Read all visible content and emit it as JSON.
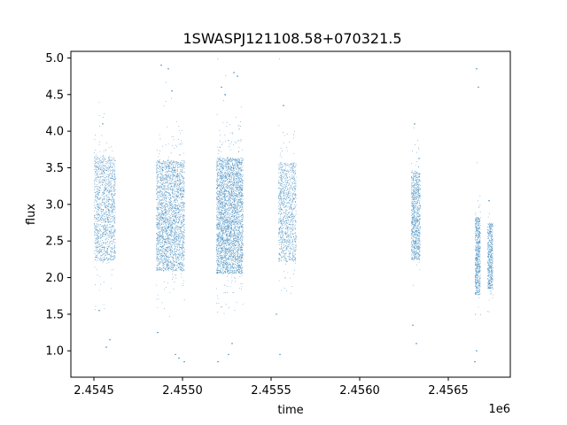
{
  "chart_data": {
    "type": "scatter",
    "title": "1SWASPJ121108.58+070321.5",
    "xlabel": "time",
    "ylabel": "flux",
    "x_offset_label": "1e6",
    "xlim": [
      2.45437,
      2.45685
    ],
    "ylim": [
      0.64,
      5.09
    ],
    "x_ticks": [
      2.4545,
      2.455,
      2.4555,
      2.456,
      2.4565
    ],
    "x_tick_labels": [
      "2.4545",
      "2.4550",
      "2.4555",
      "2.4560",
      "2.4565"
    ],
    "y_ticks": [
      1.0,
      1.5,
      2.0,
      2.5,
      3.0,
      3.5,
      4.0,
      4.5,
      5.0
    ],
    "y_tick_labels": [
      "1.0",
      "1.5",
      "2.0",
      "2.5",
      "3.0",
      "3.5",
      "4.0",
      "4.5",
      "5.0"
    ],
    "grid": false,
    "point_color": "#1f77b4",
    "clusters": [
      {
        "x_start": 2.4545,
        "x_end": 2.45462,
        "y_center": 2.95,
        "y_spread": 0.95,
        "density": 1400
      },
      {
        "x_start": 2.45485,
        "x_end": 2.45501,
        "y_center": 2.85,
        "y_spread": 1.0,
        "density": 2600
      },
      {
        "x_start": 2.45519,
        "x_end": 2.45534,
        "y_center": 2.85,
        "y_spread": 1.05,
        "density": 3400
      },
      {
        "x_start": 2.45554,
        "x_end": 2.45564,
        "y_center": 2.9,
        "y_spread": 0.9,
        "density": 1100
      },
      {
        "x_start": 2.45629,
        "x_end": 2.45634,
        "y_center": 2.85,
        "y_spread": 0.8,
        "density": 900
      },
      {
        "x_start": 2.45665,
        "x_end": 2.45668,
        "y_center": 2.3,
        "y_spread": 0.7,
        "density": 600
      },
      {
        "x_start": 2.45672,
        "x_end": 2.45675,
        "y_center": 2.3,
        "y_spread": 0.6,
        "density": 500
      }
    ],
    "outliers": [
      [
        2.45455,
        4.1
      ],
      [
        2.45459,
        1.15
      ],
      [
        2.45457,
        1.05
      ],
      [
        2.45453,
        1.55
      ],
      [
        2.45488,
        4.9
      ],
      [
        2.45492,
        4.85
      ],
      [
        2.45494,
        4.55
      ],
      [
        2.45496,
        0.95
      ],
      [
        2.45498,
        0.9
      ],
      [
        2.45501,
        0.85
      ],
      [
        2.45486,
        1.25
      ],
      [
        2.45522,
        4.6
      ],
      [
        2.45524,
        4.5
      ],
      [
        2.45529,
        4.8
      ],
      [
        2.45531,
        4.75
      ],
      [
        2.45526,
        0.95
      ],
      [
        2.4552,
        0.85
      ],
      [
        2.45528,
        1.1
      ],
      [
        2.45557,
        4.35
      ],
      [
        2.45555,
        0.95
      ],
      [
        2.45553,
        1.5
      ],
      [
        2.45631,
        4.1
      ],
      [
        2.45632,
        1.1
      ],
      [
        2.4563,
        1.35
      ],
      [
        2.45666,
        4.85
      ],
      [
        2.45667,
        4.6
      ],
      [
        2.45665,
        0.85
      ],
      [
        2.45666,
        1.0
      ],
      [
        2.45673,
        3.05
      ]
    ]
  }
}
